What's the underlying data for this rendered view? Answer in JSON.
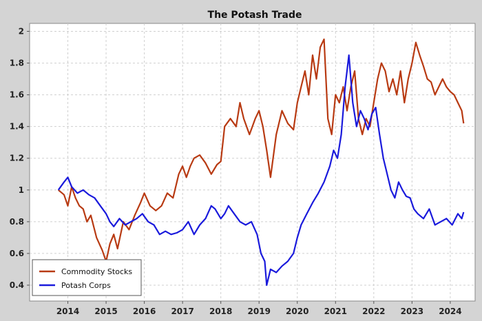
{
  "chart_data": {
    "type": "line",
    "title": "The Potash Trade",
    "xlabel": "",
    "ylabel": "",
    "xlim": [
      2013.0,
      2024.65
    ],
    "ylim": [
      0.3,
      2.05
    ],
    "x_ticks": [
      2014,
      2015,
      2016,
      2017,
      2018,
      2019,
      2020,
      2021,
      2022,
      2023,
      2024
    ],
    "y_ticks": [
      0.4,
      0.6,
      0.8,
      1,
      1.2,
      1.4,
      1.6,
      1.8,
      2
    ],
    "grid": true,
    "legend_position": "bottom-left",
    "series": [
      {
        "name": "Commodity Stocks",
        "color": "#b83a12",
        "x": [
          2013.75,
          2013.9,
          2014.0,
          2014.1,
          2014.2,
          2014.3,
          2014.4,
          2014.5,
          2014.6,
          2014.75,
          2014.9,
          2015.0,
          2015.1,
          2015.2,
          2015.3,
          2015.45,
          2015.6,
          2015.75,
          2015.9,
          2016.0,
          2016.15,
          2016.3,
          2016.45,
          2016.6,
          2016.75,
          2016.9,
          2017.0,
          2017.1,
          2017.2,
          2017.3,
          2017.45,
          2017.6,
          2017.75,
          2017.9,
          2018.0,
          2018.1,
          2018.25,
          2018.4,
          2018.5,
          2018.6,
          2018.75,
          2018.9,
          2019.0,
          2019.1,
          2019.2,
          2019.3,
          2019.45,
          2019.6,
          2019.75,
          2019.9,
          2020.0,
          2020.1,
          2020.2,
          2020.3,
          2020.4,
          2020.5,
          2020.6,
          2020.7,
          2020.8,
          2020.9,
          2021.0,
          2021.1,
          2021.2,
          2021.3,
          2021.4,
          2021.5,
          2021.6,
          2021.7,
          2021.8,
          2021.9,
          2022.0,
          2022.1,
          2022.2,
          2022.3,
          2022.4,
          2022.5,
          2022.6,
          2022.7,
          2022.8,
          2022.9,
          2023.0,
          2023.1,
          2023.2,
          2023.3,
          2023.4,
          2023.5,
          2023.6,
          2023.7,
          2023.8,
          2023.9,
          2024.0,
          2024.1,
          2024.2,
          2024.3,
          2024.35
        ],
        "y": [
          1.0,
          0.97,
          0.9,
          1.02,
          0.95,
          0.9,
          0.88,
          0.8,
          0.84,
          0.7,
          0.62,
          0.55,
          0.66,
          0.72,
          0.63,
          0.8,
          0.75,
          0.84,
          0.92,
          0.98,
          0.9,
          0.87,
          0.9,
          0.98,
          0.95,
          1.1,
          1.15,
          1.08,
          1.15,
          1.2,
          1.22,
          1.17,
          1.1,
          1.16,
          1.18,
          1.4,
          1.45,
          1.4,
          1.55,
          1.45,
          1.35,
          1.45,
          1.5,
          1.4,
          1.25,
          1.08,
          1.35,
          1.5,
          1.42,
          1.38,
          1.55,
          1.65,
          1.75,
          1.6,
          1.85,
          1.7,
          1.9,
          1.95,
          1.45,
          1.35,
          1.6,
          1.55,
          1.65,
          1.5,
          1.65,
          1.75,
          1.45,
          1.35,
          1.45,
          1.4,
          1.55,
          1.7,
          1.8,
          1.75,
          1.62,
          1.7,
          1.6,
          1.75,
          1.55,
          1.7,
          1.8,
          1.93,
          1.85,
          1.78,
          1.7,
          1.68,
          1.6,
          1.65,
          1.7,
          1.65,
          1.62,
          1.6,
          1.55,
          1.5,
          1.42
        ]
      },
      {
        "name": "Potash Corps",
        "color": "#1a1adc",
        "x": [
          2013.75,
          2013.9,
          2014.0,
          2014.1,
          2014.25,
          2014.4,
          2014.55,
          2014.7,
          2014.85,
          2015.0,
          2015.1,
          2015.2,
          2015.35,
          2015.5,
          2015.65,
          2015.8,
          2015.95,
          2016.1,
          2016.25,
          2016.4,
          2016.55,
          2016.7,
          2016.85,
          2017.0,
          2017.15,
          2017.3,
          2017.45,
          2017.6,
          2017.75,
          2017.85,
          2018.0,
          2018.1,
          2018.2,
          2018.35,
          2018.5,
          2018.65,
          2018.8,
          2018.95,
          2019.05,
          2019.15,
          2019.2,
          2019.3,
          2019.45,
          2019.6,
          2019.75,
          2019.9,
          2020.0,
          2020.1,
          2020.25,
          2020.4,
          2020.55,
          2020.7,
          2020.85,
          2020.95,
          2021.05,
          2021.15,
          2021.25,
          2021.35,
          2021.45,
          2021.55,
          2021.65,
          2021.75,
          2021.85,
          2021.95,
          2022.05,
          2022.15,
          2022.25,
          2022.35,
          2022.45,
          2022.55,
          2022.65,
          2022.75,
          2022.85,
          2022.95,
          2023.05,
          2023.15,
          2023.3,
          2023.45,
          2023.6,
          2023.75,
          2023.9,
          2024.05,
          2024.2,
          2024.3,
          2024.35
        ],
        "y": [
          1.0,
          1.05,
          1.08,
          1.02,
          0.98,
          1.0,
          0.97,
          0.95,
          0.9,
          0.85,
          0.8,
          0.77,
          0.82,
          0.78,
          0.8,
          0.82,
          0.85,
          0.8,
          0.78,
          0.72,
          0.74,
          0.72,
          0.73,
          0.75,
          0.8,
          0.72,
          0.78,
          0.82,
          0.9,
          0.88,
          0.82,
          0.85,
          0.9,
          0.85,
          0.8,
          0.78,
          0.8,
          0.72,
          0.6,
          0.55,
          0.4,
          0.5,
          0.48,
          0.52,
          0.55,
          0.6,
          0.7,
          0.78,
          0.85,
          0.92,
          0.98,
          1.05,
          1.15,
          1.25,
          1.2,
          1.35,
          1.65,
          1.85,
          1.55,
          1.4,
          1.5,
          1.45,
          1.38,
          1.48,
          1.52,
          1.35,
          1.2,
          1.1,
          1.0,
          0.95,
          1.05,
          1.0,
          0.96,
          0.95,
          0.88,
          0.85,
          0.82,
          0.88,
          0.78,
          0.8,
          0.82,
          0.78,
          0.85,
          0.82,
          0.86
        ]
      }
    ]
  }
}
